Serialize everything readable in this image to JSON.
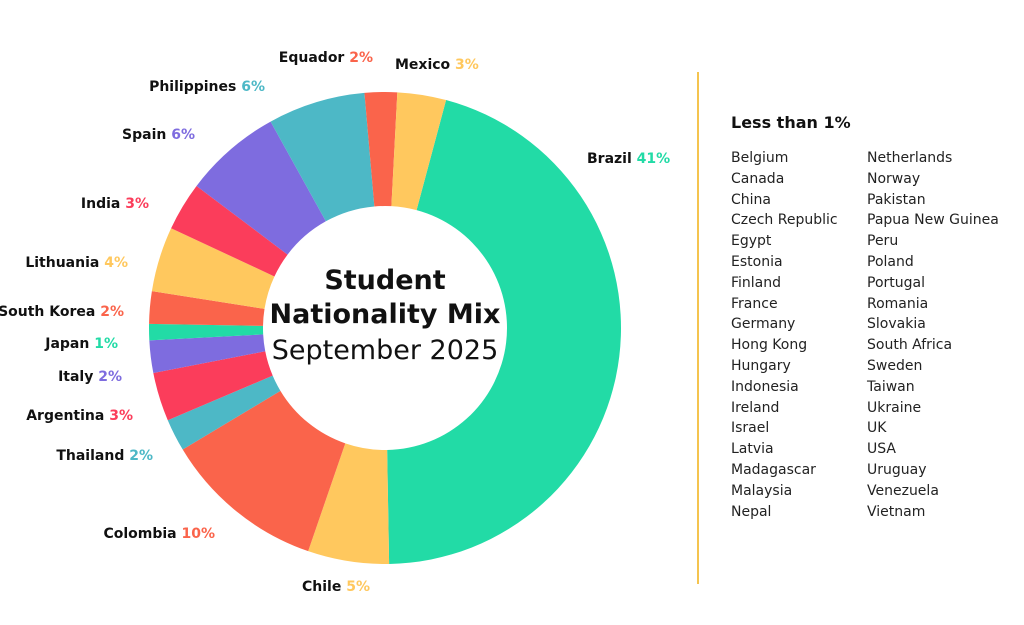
{
  "chart_data": {
    "type": "pie",
    "title": "Student Nationality Mix",
    "subtitle": "September 2025",
    "slices": [
      {
        "label": "Brazil",
        "value": 41,
        "value_label": "41%",
        "color": "#22dba6"
      },
      {
        "label": "Chile",
        "value": 5,
        "value_label": "5%",
        "color": "#ffc85e"
      },
      {
        "label": "Colombia",
        "value": 10,
        "value_label": "10%",
        "color": "#fa644b"
      },
      {
        "label": "Thailand",
        "value": 2,
        "value_label": "2%",
        "color": "#4db8c6"
      },
      {
        "label": "Argentina",
        "value": 3,
        "value_label": "3%",
        "color": "#fb3d5b"
      },
      {
        "label": "Italy",
        "value": 2,
        "value_label": "2%",
        "color": "#7e6cdf"
      },
      {
        "label": "Japan",
        "value": 1,
        "value_label": "1%",
        "color": "#22dba6"
      },
      {
        "label": "South Korea",
        "value": 2,
        "value_label": "2%",
        "color": "#fa644b"
      },
      {
        "label": "Lithuania",
        "value": 4,
        "value_label": "4%",
        "color": "#ffc85e"
      },
      {
        "label": "India",
        "value": 3,
        "value_label": "3%",
        "color": "#fb3d5b"
      },
      {
        "label": "Spain",
        "value": 6,
        "value_label": "6%",
        "color": "#7e6cdf"
      },
      {
        "label": "Philippines",
        "value": 6,
        "value_label": "6%",
        "color": "#4db8c6"
      },
      {
        "label": "Equador",
        "value": 2,
        "value_label": "2%",
        "color": "#fa644b"
      },
      {
        "label": "Mexico",
        "value": 3,
        "value_label": "3%",
        "color": "#ffc85e"
      }
    ]
  },
  "less_than_1": {
    "title": "Less than 1%",
    "column_a": [
      "Belgium",
      "Canada",
      "China",
      "Czech Republic",
      "Egypt",
      "Estonia",
      "Finland",
      "France",
      "Germany",
      "Hong Kong",
      "Hungary",
      "Indonesia",
      "Ireland",
      "Israel",
      "Latvia",
      "Madagascar",
      "Malaysia",
      "Nepal"
    ],
    "column_b": [
      "Netherlands",
      "Norway",
      "Pakistan",
      "Papua New Guinea",
      "Peru",
      "Poland",
      "Portugal",
      "Romania",
      "Slovakia",
      "South Africa",
      "Sweden",
      "Taiwan",
      "Ukraine",
      "UK",
      "USA",
      "Uruguay",
      "Venezuela",
      "Vietnam"
    ]
  }
}
